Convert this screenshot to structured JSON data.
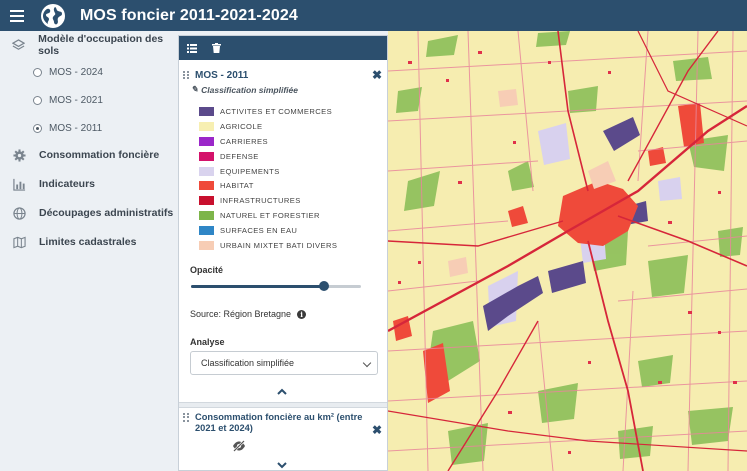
{
  "header": {
    "title": "MOS foncier 2011-2021-2024"
  },
  "sidebar": {
    "items": [
      {
        "label": "Modèle d'occupation des sols",
        "icon": "layers-icon"
      },
      {
        "label": "Consommation foncière",
        "icon": "gear-icon"
      },
      {
        "label": "Indicateurs",
        "icon": "bar-chart-icon"
      },
      {
        "label": "Découpages administratifs",
        "icon": "globe-icon"
      },
      {
        "label": "Limites cadastrales",
        "icon": "map-icon"
      }
    ],
    "mos_options": [
      {
        "label": "MOS - 2024",
        "checked": false
      },
      {
        "label": "MOS - 2021",
        "checked": false
      },
      {
        "label": "MOS - 2011",
        "checked": true
      }
    ]
  },
  "panel": {
    "layer1": {
      "title": "MOS - 2011",
      "subtitle": "Classification simplifiée",
      "legend": [
        {
          "label": "ACTIVITES ET COMMERCES",
          "color": "#5b4a8b"
        },
        {
          "label": "AGRICOLE",
          "color": "#f7efb2"
        },
        {
          "label": "CARRIERES",
          "color": "#9b27c9"
        },
        {
          "label": "DEFENSE",
          "color": "#d4126b"
        },
        {
          "label": "EQUIPEMENTS",
          "color": "#d9d3ee"
        },
        {
          "label": "HABITAT",
          "color": "#ef4a3a"
        },
        {
          "label": "INFRASTRUCTURES",
          "color": "#c8102e"
        },
        {
          "label": "NATUREL ET FORESTIER",
          "color": "#7db54a"
        },
        {
          "label": "SURFACES EN EAU",
          "color": "#2f86c6"
        },
        {
          "label": "URBAIN MIXTET BATI DIVERS",
          "color": "#f7cdb5"
        }
      ],
      "opacity_label": "Opacité",
      "opacity_value": 0.78,
      "source": "Source: Région Bretagne",
      "analyse_label": "Analyse",
      "analyse_value": "Classification simplifiée"
    },
    "layer2": {
      "title": "Consommation foncière au km² (entre 2021 et 2024)"
    }
  },
  "colors": {
    "header_bg": "#2c4f6e",
    "accent": "#2c4f6e"
  }
}
